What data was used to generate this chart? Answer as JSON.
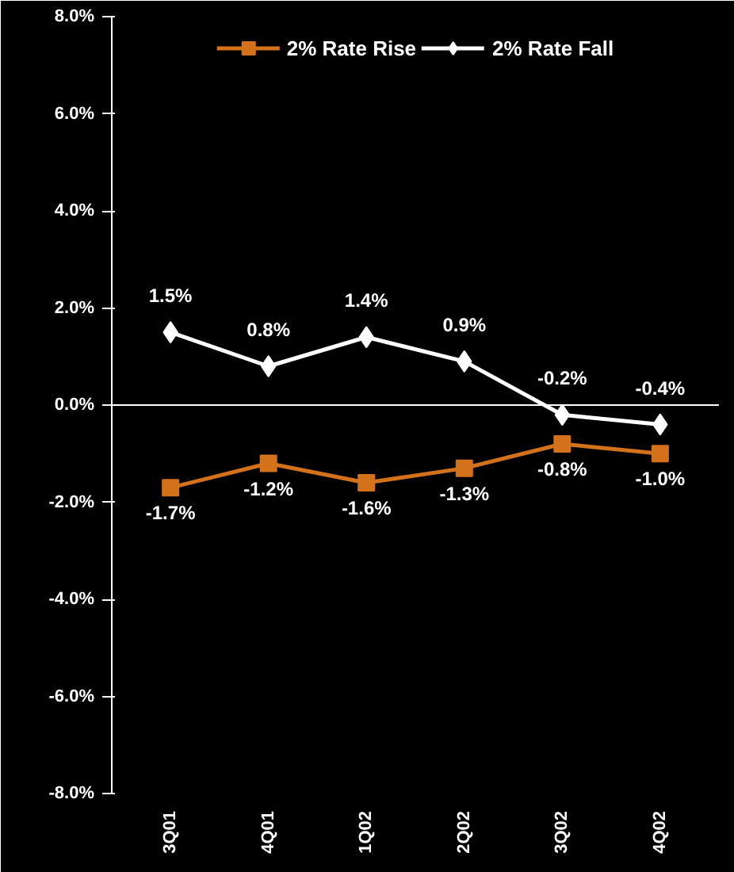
{
  "chart_data": {
    "type": "line",
    "categories": [
      "3Q01",
      "4Q01",
      "1Q02",
      "2Q02",
      "3Q02",
      "4Q02"
    ],
    "series": [
      {
        "name": "2% Rate Rise",
        "color": "#d4721c",
        "marker": "square",
        "values": [
          -1.7,
          -1.2,
          -1.6,
          -1.3,
          -0.8,
          -1.0
        ]
      },
      {
        "name": "2% Rate Fall",
        "color": "#ffffff",
        "marker": "diamond",
        "values": [
          1.5,
          0.8,
          1.4,
          0.9,
          -0.2,
          -0.4
        ]
      }
    ],
    "ylim": [
      -8,
      8
    ],
    "yticks": [
      {
        "value": -8,
        "label": "-8.0%"
      },
      {
        "value": -6,
        "label": "-6.0%"
      },
      {
        "value": -4,
        "label": "-4.0%"
      },
      {
        "value": -2,
        "label": "-2.0%"
      },
      {
        "value": 0,
        "label": "0.0%"
      },
      {
        "value": 2,
        "label": "2.0%"
      },
      {
        "value": 4,
        "label": "4.0%"
      },
      {
        "value": 6,
        "label": "6.0%"
      },
      {
        "value": 8,
        "label": "8.0%"
      }
    ],
    "value_labels": [
      [
        "-1.7%",
        "-1.2%",
        "-1.6%",
        "-1.3%",
        "-0.8%",
        "-1.0%"
      ],
      [
        "1.5%",
        "0.8%",
        "1.4%",
        "0.9%",
        "-0.2%",
        "-0.4%"
      ]
    ],
    "ref_lines": [
      {
        "axis": "y",
        "value": 0,
        "color": "#ffffff",
        "line_style": "solid"
      }
    ],
    "legend": "top",
    "grid": false,
    "line_style": "solid"
  }
}
